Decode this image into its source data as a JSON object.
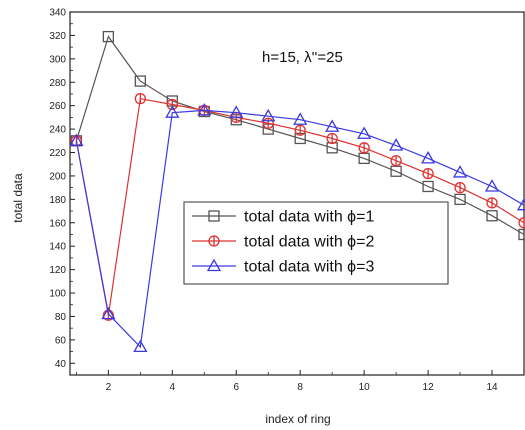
{
  "chart_data": {
    "type": "line",
    "xlabel": "index of ring",
    "ylabel": "total data",
    "annotation": "h=15, λ''=25",
    "xlim": [
      0.8,
      15
    ],
    "ylim": [
      30,
      340
    ],
    "xticks": [
      2,
      4,
      6,
      8,
      10,
      12,
      14
    ],
    "yticks": [
      40,
      60,
      80,
      100,
      120,
      140,
      160,
      180,
      200,
      220,
      240,
      260,
      280,
      300,
      320,
      340
    ],
    "grid": false,
    "legend_position": "center-left",
    "x": [
      1,
      2,
      3,
      4,
      5,
      6,
      7,
      8,
      9,
      10,
      11,
      12,
      13,
      14,
      15
    ],
    "series": [
      {
        "name": "total data with ϕ=1",
        "marker": "square",
        "color": "#555555",
        "values": [
          230,
          319,
          281,
          264,
          255,
          248,
          240,
          232,
          224,
          215,
          204,
          191,
          180,
          166,
          150
        ]
      },
      {
        "name": "total data with ϕ=2",
        "marker": "circle-plus",
        "color": "#e03030",
        "values": [
          230,
          81,
          266,
          261,
          256,
          250,
          245,
          239,
          232,
          224,
          213,
          202,
          190,
          177,
          160
        ]
      },
      {
        "name": "total data with ϕ=3",
        "marker": "triangle",
        "color": "#3a3ae0",
        "values": [
          230,
          82,
          54,
          254,
          256,
          254,
          251,
          248,
          242,
          236,
          226,
          215,
          203,
          191,
          175
        ]
      }
    ]
  }
}
